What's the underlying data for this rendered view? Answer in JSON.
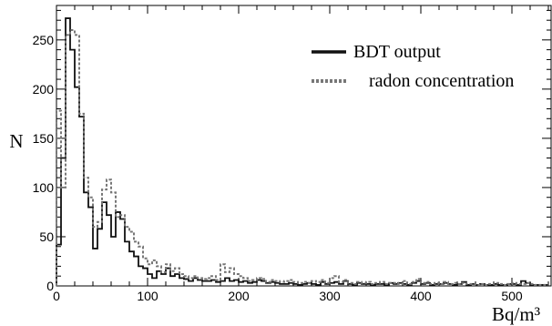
{
  "chart_data": {
    "type": "line",
    "title": "",
    "xlabel": "Bq/m³",
    "ylabel": "N",
    "xlim": [
      0,
      543
    ],
    "ylim": [
      0,
      285
    ],
    "bin_width": 5,
    "xticks": [
      0,
      100,
      200,
      300,
      400,
      500
    ],
    "yticks": [
      0,
      50,
      100,
      150,
      200,
      250
    ],
    "grid": false,
    "legend_position": "top-right",
    "series": [
      {
        "name": "BDT output",
        "style": "solid",
        "color": "#111111",
        "bin_values": [
          42,
          130,
          272,
          240,
          202,
          172,
          95,
          80,
          38,
          58,
          85,
          72,
          50,
          75,
          68,
          45,
          35,
          30,
          20,
          18,
          12,
          8,
          15,
          12,
          18,
          10,
          12,
          8,
          7,
          5,
          8,
          6,
          5,
          5,
          6,
          4,
          5,
          8,
          5,
          6,
          4,
          5,
          3,
          4,
          6,
          5,
          3,
          4,
          3,
          2,
          2,
          3,
          2,
          1,
          2,
          3,
          2,
          1,
          4,
          2,
          3,
          4,
          2,
          5,
          2,
          1,
          3,
          2,
          2,
          1,
          2,
          2,
          1,
          3,
          2,
          3,
          2,
          1,
          3,
          5,
          2,
          3,
          1,
          2,
          2,
          3,
          2,
          1,
          2,
          4,
          1,
          2,
          1,
          2,
          1,
          1,
          2,
          1,
          1,
          2,
          2,
          1,
          5,
          3,
          1,
          1,
          1,
          1
        ]
      },
      {
        "name": "radon concentration",
        "style": "dashed",
        "color": "#777777",
        "bin_values": [
          178,
          100,
          255,
          260,
          255,
          175,
          110,
          90,
          60,
          65,
          98,
          108,
          95,
          70,
          72,
          60,
          55,
          45,
          40,
          28,
          22,
          26,
          20,
          14,
          22,
          15,
          18,
          12,
          10,
          8,
          10,
          8,
          7,
          8,
          10,
          6,
          22,
          14,
          18,
          12,
          10,
          8,
          5,
          6,
          8,
          7,
          4,
          6,
          5,
          4,
          5,
          6,
          4,
          3,
          4,
          3,
          5,
          4,
          6,
          3,
          8,
          10,
          4,
          6,
          3,
          2,
          4,
          3,
          4,
          2,
          3,
          4,
          2,
          3,
          3,
          2,
          5,
          2,
          4,
          7,
          3,
          4,
          2,
          3,
          2,
          4,
          2,
          3,
          2,
          3,
          2,
          2,
          1,
          2,
          1,
          2,
          3,
          2,
          1,
          2,
          3,
          2,
          2,
          3,
          2,
          1,
          1,
          1
        ]
      }
    ]
  }
}
